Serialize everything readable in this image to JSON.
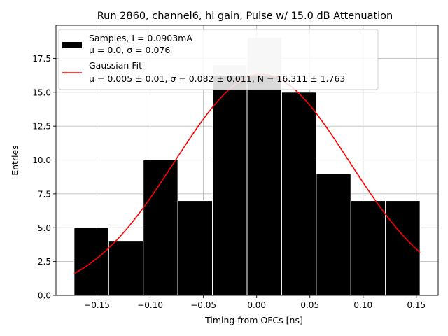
{
  "chart_data": {
    "type": "bar",
    "title": "Run 2860, channel6, hi gain, Pulse w/ 15.0 dB Attenuation",
    "xlabel": "Timing from OFCs [ns]",
    "ylabel": "Entries",
    "xlim": [
      -0.1885,
      0.1705
    ],
    "ylim": [
      0,
      19.95
    ],
    "grid": true,
    "xticks": [
      -0.15,
      -0.1,
      -0.05,
      0.0,
      0.05,
      0.1,
      0.15
    ],
    "xtick_labels": [
      "−0.15",
      "−0.10",
      "−0.05",
      "0.00",
      "0.05",
      "0.10",
      "0.15"
    ],
    "yticks": [
      0,
      2.5,
      5,
      7.5,
      10,
      12.5,
      15,
      17.5
    ],
    "ytick_labels": [
      "0.0",
      "2.5",
      "5.0",
      "7.5",
      "10.0",
      "12.5",
      "15.0",
      "17.5"
    ],
    "bins": [
      {
        "left": -0.1715,
        "right": -0.139,
        "count": 5
      },
      {
        "left": -0.139,
        "right": -0.1065,
        "count": 4
      },
      {
        "left": -0.1065,
        "right": -0.074,
        "count": 10
      },
      {
        "left": -0.074,
        "right": -0.0415,
        "count": 7
      },
      {
        "left": -0.0415,
        "right": -0.009,
        "count": 17
      },
      {
        "left": -0.009,
        "right": 0.0235,
        "count": 19
      },
      {
        "left": 0.0235,
        "right": 0.056,
        "count": 15
      },
      {
        "left": 0.056,
        "right": 0.0885,
        "count": 9
      },
      {
        "left": 0.0885,
        "right": 0.121,
        "count": 7
      },
      {
        "left": 0.121,
        "right": 0.1535,
        "count": 7
      }
    ],
    "series": [
      {
        "name": "Samples",
        "kind": "histogram",
        "color": "#000000",
        "highlight_color": "#c8c8c8",
        "legend_lines": [
          "Samples, I = 0.0903mA",
          "μ = 0.0, σ = 0.076"
        ]
      },
      {
        "name": "Gaussian Fit",
        "kind": "line",
        "color": "#ff0000",
        "mu": 0.005,
        "sigma": 0.082,
        "N": 16.311,
        "x_range": [
          -0.1715,
          0.1535
        ],
        "legend_lines": [
          "Gaussian Fit",
          "μ = 0.005 ± 0.01, σ = 0.082 ± 0.011, N = 16.311 ± 1.763"
        ]
      }
    ],
    "legend_position": "top-left"
  }
}
